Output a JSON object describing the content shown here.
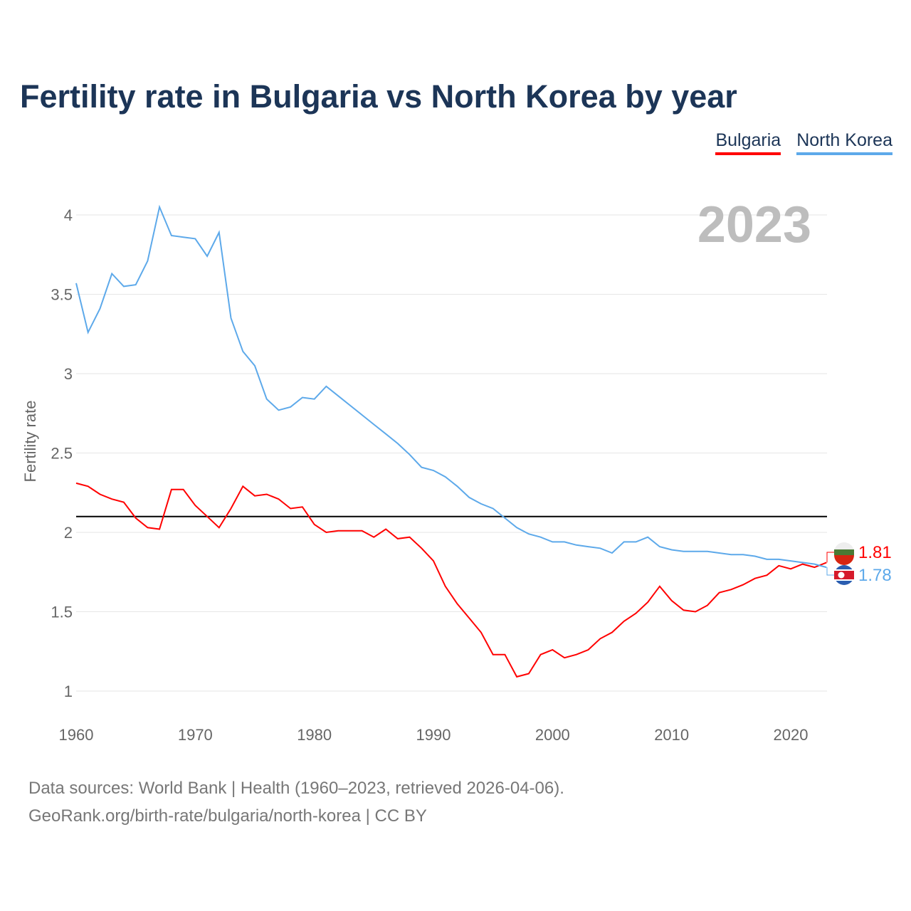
{
  "title": "Fertility rate in Bulgaria vs North Korea by year",
  "legend": [
    {
      "label": "Bulgaria",
      "color": "#ff0000"
    },
    {
      "label": "North Korea",
      "color": "#5da9ea"
    }
  ],
  "year_label": "2023",
  "source": {
    "line1": "Data sources: World Bank | Health (1960–2023, retrieved 2026-04-06).",
    "line2": "GeoRank.org/birth-rate/bulgaria/north-korea | CC BY"
  },
  "chart_data": {
    "type": "line",
    "title": "Fertility rate in Bulgaria vs North Korea by year",
    "xlabel": "",
    "ylabel": "Fertility rate",
    "xlim": [
      1960,
      2023
    ],
    "ylim": [
      0.9,
      4.1
    ],
    "xticks": [
      "1960",
      "1970",
      "1980",
      "1990",
      "2000",
      "2010",
      "2020"
    ],
    "yticks": [
      "1",
      "1.5",
      "2",
      "2.5",
      "3",
      "3.5",
      "4"
    ],
    "reference_line": 2.1,
    "x_start": 1960,
    "series": [
      {
        "name": "Bulgaria",
        "color": "#ff0000",
        "end_label": "1.81",
        "values": [
          2.31,
          2.29,
          2.24,
          2.21,
          2.19,
          2.09,
          2.03,
          2.02,
          2.27,
          2.27,
          2.17,
          2.1,
          2.03,
          2.15,
          2.29,
          2.23,
          2.24,
          2.21,
          2.15,
          2.16,
          2.05,
          2.0,
          2.01,
          2.01,
          2.01,
          1.97,
          2.02,
          1.96,
          1.97,
          1.9,
          1.82,
          1.66,
          1.55,
          1.46,
          1.37,
          1.23,
          1.23,
          1.09,
          1.11,
          1.23,
          1.26,
          1.21,
          1.23,
          1.26,
          1.33,
          1.37,
          1.44,
          1.49,
          1.56,
          1.66,
          1.57,
          1.51,
          1.5,
          1.54,
          1.62,
          1.64,
          1.67,
          1.71,
          1.73,
          1.79,
          1.77,
          1.8,
          1.78,
          1.81
        ]
      },
      {
        "name": "North Korea",
        "color": "#5da9ea",
        "end_label": "1.78",
        "values": [
          3.57,
          3.26,
          3.41,
          3.63,
          3.55,
          3.56,
          3.71,
          4.05,
          3.87,
          3.86,
          3.85,
          3.74,
          3.89,
          3.35,
          3.14,
          3.05,
          2.84,
          2.77,
          2.79,
          2.85,
          2.84,
          2.92,
          2.86,
          2.8,
          2.74,
          2.68,
          2.62,
          2.56,
          2.49,
          2.41,
          2.39,
          2.35,
          2.29,
          2.22,
          2.18,
          2.15,
          2.09,
          2.03,
          1.99,
          1.97,
          1.94,
          1.94,
          1.92,
          1.91,
          1.9,
          1.87,
          1.94,
          1.94,
          1.97,
          1.91,
          1.89,
          1.88,
          1.88,
          1.88,
          1.87,
          1.86,
          1.86,
          1.85,
          1.83,
          1.83,
          1.82,
          1.81,
          1.8,
          1.78
        ]
      }
    ]
  }
}
